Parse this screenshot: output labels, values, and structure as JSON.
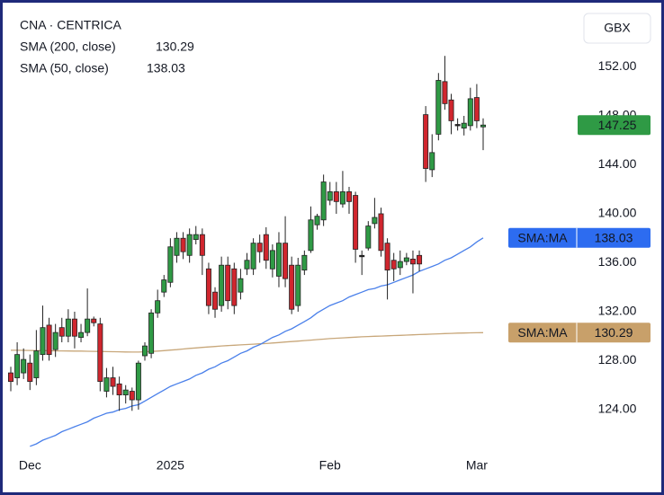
{
  "chart_data": {
    "type": "candlestick",
    "title": "CNA · CENTRICA",
    "currency": "GBX",
    "ma_badge_label": "SMA:MA",
    "up_color": "#2f9a45",
    "down_color": "#d0262e",
    "categories": [
      null,
      null,
      null,
      "Dec",
      null,
      null,
      null,
      null,
      null,
      null,
      null,
      null,
      null,
      null,
      null,
      null,
      null,
      null,
      null,
      null,
      null,
      null,
      null,
      null,
      null,
      "2025",
      null,
      null,
      null,
      null,
      null,
      null,
      null,
      null,
      null,
      null,
      null,
      null,
      null,
      null,
      null,
      null,
      null,
      null,
      null,
      null,
      null,
      null,
      null,
      null,
      "Feb",
      null,
      null,
      null,
      null,
      null,
      null,
      null,
      null,
      null,
      null,
      null,
      null,
      null,
      null,
      null,
      null,
      null,
      null,
      null,
      null,
      null,
      null,
      "Mar",
      null
    ],
    "open": [
      127.0,
      126.6,
      127,
      127.8,
      126.6,
      128.5,
      130.9,
      128.9,
      130.7,
      130,
      131.4,
      129.9,
      130.3,
      131.4,
      131,
      125.5,
      126.6,
      126.1,
      125.2,
      125.5,
      124.8,
      128.4,
      128.6,
      131.9,
      133.6,
      134.4,
      136.6,
      138,
      136.6,
      137.9,
      138.3,
      135.5,
      133.6,
      132.5,
      135.8,
      135.5,
      133.6,
      135.5,
      135.5,
      137.6,
      138.3,
      135.5,
      134.9,
      137.6,
      135.8,
      132.5,
      135.4,
      137,
      139.1,
      139.5,
      141.1,
      141.8,
      140.8,
      141.8,
      141.5,
      136.5,
      137.2,
      139.2,
      140,
      137.6,
      136.2,
      135.6,
      136.1,
      136.3,
      136.6,
      148.1,
      143.6,
      146.5,
      150.8,
      149.3,
      147.3,
      147,
      147.2,
      149.5,
      147.1
    ],
    "high": [
      127.5,
      129.5,
      129,
      128.5,
      130.5,
      132.5,
      131.5,
      131,
      131.5,
      132.2,
      132,
      131,
      133.9,
      131.6,
      131.5,
      127.4,
      127.5,
      126.7,
      126,
      125.8,
      128,
      129.5,
      132.2,
      133.8,
      135,
      138,
      138.5,
      138.5,
      138.8,
      139,
      138.8,
      136,
      134,
      136.5,
      136.5,
      136,
      135.5,
      136.8,
      138,
      138.3,
      138.9,
      137.5,
      138.5,
      139.8,
      136.5,
      136.4,
      137,
      140.6,
      140,
      143.2,
      142.6,
      142.6,
      143.5,
      142.2,
      141.8,
      137,
      139.4,
      141.3,
      140.5,
      138,
      136.8,
      137,
      136.8,
      137,
      137,
      148.8,
      146.5,
      151.5,
      152.9,
      149.8,
      147.8,
      148,
      150.3,
      150.6,
      147.8
    ],
    "low": [
      125.5,
      126,
      126.5,
      125.6,
      126,
      128,
      128,
      128.3,
      129.5,
      129.5,
      129,
      129.5,
      130,
      130.8,
      125.5,
      125,
      125.2,
      123.9,
      124.5,
      123.9,
      124,
      128,
      128.2,
      131.5,
      133.2,
      134,
      136,
      136.3,
      136,
      137.5,
      135,
      131.8,
      131.5,
      132,
      132.2,
      131.8,
      133,
      135,
      135,
      136,
      135.5,
      134.8,
      134,
      134,
      131.8,
      132,
      135,
      136.8,
      138.7,
      139,
      140.7,
      140,
      140.5,
      140,
      136,
      135,
      137,
      138.8,
      136.5,
      133,
      134.5,
      135,
      135.8,
      133.5,
      135.3,
      142.6,
      143,
      146,
      148.5,
      146.5,
      146.8,
      146.4,
      146.8,
      147,
      145.2
    ],
    "close": [
      126.3,
      128.5,
      128.1,
      126.3,
      128.8,
      130.7,
      128.5,
      130.3,
      130,
      131.4,
      130,
      130.3,
      131.4,
      131.1,
      126.3,
      126.6,
      125.9,
      125.2,
      125.6,
      124.8,
      127.8,
      129.2,
      131.9,
      132.9,
      134.6,
      137.3,
      138,
      136.9,
      138.3,
      138.3,
      136.6,
      132.5,
      132.2,
      135.8,
      132.9,
      132.5,
      134.7,
      136.2,
      137.6,
      136.9,
      136.2,
      137,
      137.6,
      134.7,
      132.2,
      135.8,
      136.6,
      139.5,
      139.8,
      142.6,
      141.8,
      141,
      141.8,
      141,
      137.1,
      136.6,
      139,
      139.7,
      137,
      135.4,
      135.5,
      136.1,
      136.4,
      135.9,
      135.9,
      143.7,
      145,
      150.9,
      149,
      147.6,
      147.2,
      147.4,
      149.4,
      147.6,
      147.25
    ],
    "series": [
      {
        "name": "SMA (200, close)",
        "color": "#c8a77a",
        "badge_color": "#c8a06a",
        "values": [
          128.85,
          128.85,
          128.84,
          128.83,
          128.82,
          128.82,
          128.81,
          128.8,
          128.8,
          128.79,
          128.78,
          128.78,
          128.77,
          128.76,
          128.75,
          128.74,
          128.73,
          128.72,
          128.71,
          128.7,
          128.7,
          128.72,
          128.75,
          128.78,
          128.82,
          128.86,
          128.9,
          128.95,
          129.0,
          129.04,
          129.08,
          129.12,
          129.16,
          129.2,
          129.23,
          129.26,
          129.29,
          129.32,
          129.35,
          129.38,
          129.4,
          129.44,
          129.48,
          129.52,
          129.56,
          129.6,
          129.64,
          129.68,
          129.72,
          129.76,
          129.8,
          129.83,
          129.86,
          129.89,
          129.92,
          129.95,
          129.97,
          129.99,
          130.01,
          130.03,
          130.05,
          130.07,
          130.09,
          130.11,
          130.13,
          130.15,
          130.17,
          130.19,
          130.21,
          130.23,
          130.25,
          130.26,
          130.27,
          130.28,
          130.29
        ]
      },
      {
        "name": "SMA (50, close)",
        "color": "#4a80ea",
        "badge_color": "#2d6cf0",
        "values": [
          null,
          null,
          null,
          121.0,
          121.2,
          121.5,
          121.7,
          121.9,
          122.2,
          122.4,
          122.6,
          122.8,
          123.0,
          123.3,
          123.5,
          123.7,
          123.8,
          124.0,
          124.1,
          124.3,
          124.4,
          124.7,
          125.0,
          125.3,
          125.6,
          125.9,
          126.1,
          126.3,
          126.5,
          126.8,
          127.0,
          127.3,
          127.5,
          127.8,
          128.0,
          128.3,
          128.6,
          128.8,
          129.1,
          129.3,
          129.6,
          129.9,
          130.1,
          130.4,
          130.6,
          130.9,
          131.2,
          131.5,
          131.9,
          132.2,
          132.5,
          132.7,
          132.9,
          133.2,
          133.4,
          133.6,
          133.8,
          133.9,
          134.1,
          134.2,
          134.4,
          134.6,
          134.8,
          135.0,
          135.3,
          135.5,
          135.7,
          135.9,
          136.2,
          136.4,
          136.7,
          137.0,
          137.3,
          137.7,
          138.03
        ]
      }
    ],
    "ylim": [
      120.4,
      157.1
    ],
    "yticks": [
      {
        "value": 124,
        "label": "124.00"
      },
      {
        "value": 128,
        "label": "128.00"
      },
      {
        "value": 132,
        "label": "132.00"
      },
      {
        "value": 136,
        "label": "136.00"
      },
      {
        "value": 140,
        "label": "140.00"
      },
      {
        "value": 144,
        "label": "144.00"
      },
      {
        "value": 148,
        "label": "148.00"
      },
      {
        "value": 152,
        "label": "152.00"
      }
    ],
    "grid": false
  }
}
